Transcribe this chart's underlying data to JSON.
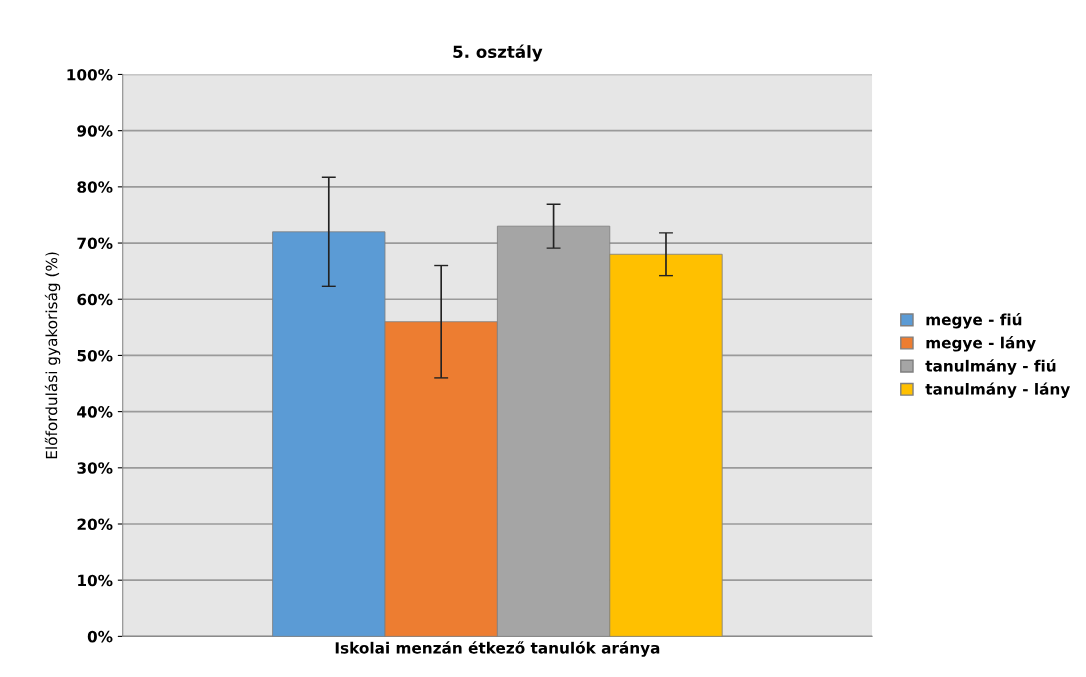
{
  "chart_data": {
    "type": "bar",
    "title": "5. osztály",
    "ylabel": "Előfordulási gyakoriság (%)",
    "categories": [
      "Iskolai menzán étkező tanulók aránya"
    ],
    "series": [
      {
        "name": "megye - fiú",
        "color": "#5b9bd5",
        "values": [
          72
        ],
        "errors": [
          9.7
        ]
      },
      {
        "name": "megye - lány",
        "color": "#ed7d31",
        "values": [
          56
        ],
        "errors": [
          10
        ]
      },
      {
        "name": "tanulmány - fiú",
        "color": "#a5a5a5",
        "values": [
          73
        ],
        "errors": [
          3.9
        ]
      },
      {
        "name": "tanulmány - lány",
        "color": "#ffc000",
        "values": [
          68
        ],
        "errors": [
          3.8
        ]
      }
    ],
    "ylim": [
      0,
      100
    ],
    "yticks": [
      {
        "value": 0,
        "label": "0%"
      },
      {
        "value": 10,
        "label": "10%"
      },
      {
        "value": 20,
        "label": "20%"
      },
      {
        "value": 30,
        "label": "30%"
      },
      {
        "value": 40,
        "label": "40%"
      },
      {
        "value": 50,
        "label": "50%"
      },
      {
        "value": 60,
        "label": "60%"
      },
      {
        "value": 70,
        "label": "70%"
      },
      {
        "value": 80,
        "label": "80%"
      },
      {
        "value": 90,
        "label": "90%"
      },
      {
        "value": 100,
        "label": "100%"
      }
    ],
    "grid": "y",
    "legend": "right"
  }
}
